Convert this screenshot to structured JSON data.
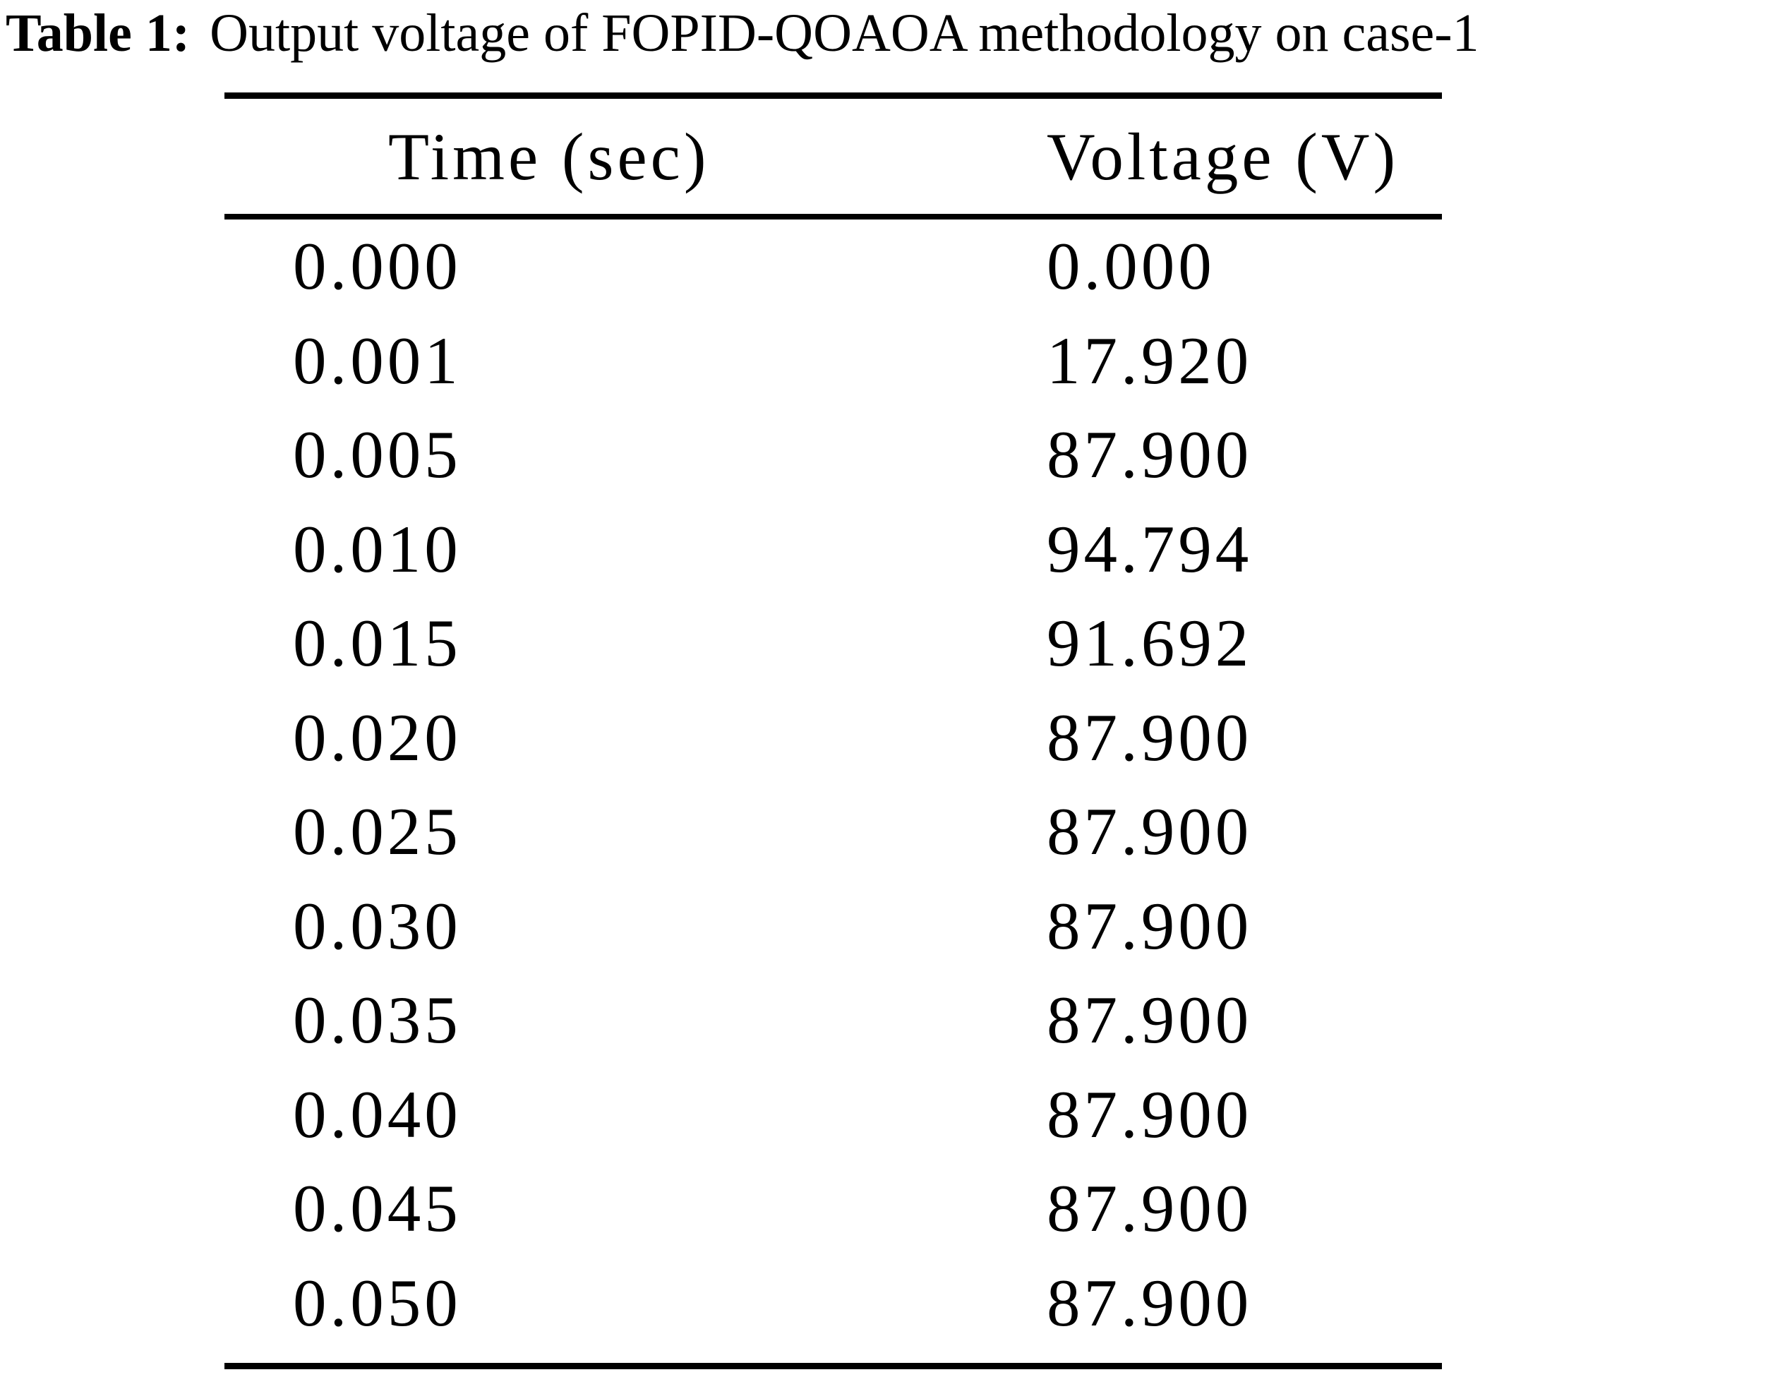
{
  "title": {
    "label": "Table 1:",
    "caption": "Output voltage of FOPID-QOAOA methodology on case-1"
  },
  "table": {
    "columns": [
      "Time (sec)",
      "Voltage (V)"
    ],
    "rows": [
      [
        "0.000",
        "0.000"
      ],
      [
        "0.001",
        "17.920"
      ],
      [
        "0.005",
        "87.900"
      ],
      [
        "0.010",
        "94.794"
      ],
      [
        "0.015",
        "91.692"
      ],
      [
        "0.020",
        "87.900"
      ],
      [
        "0.025",
        "87.900"
      ],
      [
        "0.030",
        "87.900"
      ],
      [
        "0.035",
        "87.900"
      ],
      [
        "0.040",
        "87.900"
      ],
      [
        "0.045",
        "87.900"
      ],
      [
        "0.050",
        "87.900"
      ]
    ]
  },
  "chart_data": {
    "type": "table",
    "title": "Table 1: Output voltage of FOPID-QOAOA methodology on case-1",
    "columns": [
      "Time (sec)",
      "Voltage (V)"
    ],
    "x": [
      0.0,
      0.001,
      0.005,
      0.01,
      0.015,
      0.02,
      0.025,
      0.03,
      0.035,
      0.04,
      0.045,
      0.05
    ],
    "y": [
      0.0,
      17.92,
      87.9,
      94.794,
      91.692,
      87.9,
      87.9,
      87.9,
      87.9,
      87.9,
      87.9,
      87.9
    ]
  },
  "colors": {
    "text": "#000000",
    "background": "#ffffff",
    "rule": "#000000"
  }
}
